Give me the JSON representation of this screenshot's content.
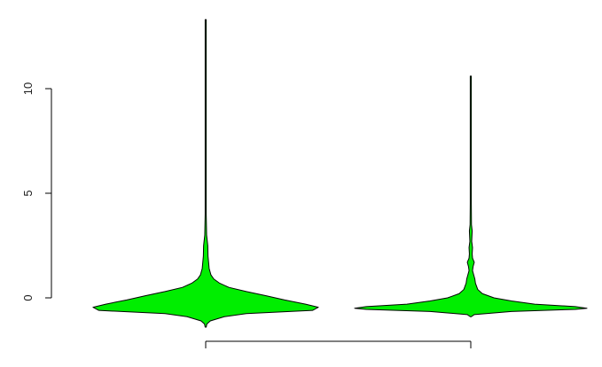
{
  "chart_data": {
    "type": "violin",
    "title": "",
    "xlabel": "",
    "ylabel": "",
    "ylim": [
      -1.6,
      13.5
    ],
    "y_ticks": [
      0,
      5,
      10
    ],
    "y_tick_labels": [
      "0",
      "5",
      "10"
    ],
    "grid": false,
    "legend": "none",
    "fill_color": "#00ee00",
    "outline_color": "#000000",
    "series": [
      {
        "min": -1.4,
        "max": 13.3,
        "profile": [
          [
            -1.4,
            0.0
          ],
          [
            -1.25,
            0.01
          ],
          [
            -1.1,
            0.04
          ],
          [
            -0.9,
            0.16
          ],
          [
            -0.75,
            0.35
          ],
          [
            -0.6,
            0.92
          ],
          [
            -0.45,
            0.97
          ],
          [
            -0.3,
            0.86
          ],
          [
            -0.1,
            0.68
          ],
          [
            0.1,
            0.52
          ],
          [
            0.3,
            0.35
          ],
          [
            0.5,
            0.2
          ],
          [
            0.7,
            0.12
          ],
          [
            0.9,
            0.07
          ],
          [
            1.1,
            0.045
          ],
          [
            1.4,
            0.03
          ],
          [
            1.7,
            0.025
          ],
          [
            2.0,
            0.02
          ],
          [
            2.5,
            0.018
          ],
          [
            3.0,
            0.008
          ],
          [
            4.0,
            0.004
          ],
          [
            5.0,
            0.004
          ],
          [
            6.0,
            0.003
          ],
          [
            8.0,
            0.003
          ],
          [
            10.0,
            0.002
          ],
          [
            12.0,
            0.002
          ],
          [
            13.3,
            0.0
          ]
        ]
      },
      {
        "min": -0.9,
        "max": 10.6,
        "profile": [
          [
            -0.9,
            0.0
          ],
          [
            -0.8,
            0.03
          ],
          [
            -0.65,
            0.35
          ],
          [
            -0.55,
            0.9
          ],
          [
            -0.5,
            1.0
          ],
          [
            -0.42,
            0.9
          ],
          [
            -0.3,
            0.55
          ],
          [
            -0.15,
            0.35
          ],
          [
            0.0,
            0.2
          ],
          [
            0.2,
            0.1
          ],
          [
            0.4,
            0.06
          ],
          [
            0.7,
            0.04
          ],
          [
            0.9,
            0.035
          ],
          [
            1.1,
            0.025
          ],
          [
            1.3,
            0.015
          ],
          [
            1.5,
            0.02
          ],
          [
            1.7,
            0.03
          ],
          [
            1.9,
            0.015
          ],
          [
            2.1,
            0.012
          ],
          [
            2.4,
            0.015
          ],
          [
            2.7,
            0.008
          ],
          [
            3.2,
            0.012
          ],
          [
            3.5,
            0.006
          ],
          [
            4.5,
            0.004
          ],
          [
            6.0,
            0.003
          ],
          [
            8.0,
            0.002
          ],
          [
            10.6,
            0.0
          ]
        ]
      }
    ]
  }
}
